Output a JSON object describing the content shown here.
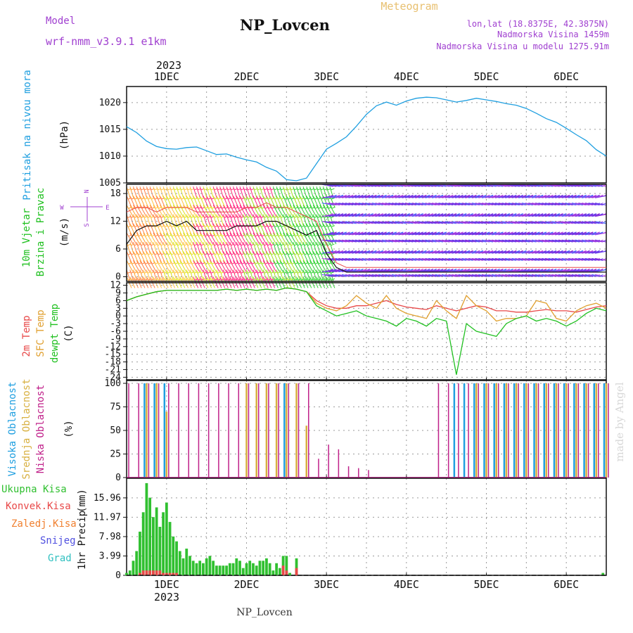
{
  "header": {
    "model_label": "Model",
    "model_name": "wrf-nmm_v3.9.1 e1km",
    "station": "NP_Lovcen",
    "meteogram_label": "Meteogram",
    "lonlat": "lon,lat (18.8375E, 42.3875N)",
    "elevation": "Nadmorska Visina 1459m",
    "model_elevation": "Nadmorska Visina u modelu 1275.91m",
    "watermark": "made by Angel",
    "footer_station": "NP_Lovcen"
  },
  "colors": {
    "pressure": "#1f9fe0",
    "wind_label": "#20c020",
    "temp2m": "#e84848",
    "sfc_temp": "#e0a030",
    "dewpt": "#20c020",
    "high_cloud": "#1f9fe0",
    "mid_cloud": "#d8b040",
    "low_cloud": "#c0208a",
    "precip_total": "#30c030",
    "precip_conv": "#e84848",
    "precip_frz": "#f08030",
    "snow": "#5050e0",
    "hail": "#30c0c0",
    "purple_text": "#a040d0",
    "gold_text": "#e8c070"
  },
  "chart_data": {
    "type": "meteogram",
    "time_axis": {
      "year": "2023",
      "day_labels": [
        "1DEC",
        "2DEC",
        "3DEC",
        "4DEC",
        "5DEC",
        "6DEC"
      ],
      "hour_range": [
        -12,
        132
      ]
    },
    "panels": [
      {
        "id": "pressure",
        "type": "line",
        "ylabel": "Pritisak na nivou mora",
        "unit": "(hPa)",
        "ylim": [
          1005,
          1023
        ],
        "yticks": [
          "1005",
          "1010",
          "1015",
          "1020"
        ],
        "x": [
          -12,
          -9,
          -6,
          -3,
          0,
          3,
          6,
          9,
          12,
          15,
          18,
          21,
          24,
          27,
          30,
          33,
          36,
          39,
          42,
          45,
          48,
          51,
          54,
          57,
          60,
          63,
          66,
          69,
          72,
          75,
          78,
          81,
          84,
          87,
          90,
          93,
          96,
          99,
          102,
          105,
          108,
          111,
          114,
          117,
          120,
          123,
          126,
          129,
          132
        ],
        "values": [
          1015.5,
          1014.4,
          1012.8,
          1011.8,
          1011.4,
          1011.3,
          1011.6,
          1011.7,
          1011.0,
          1010.3,
          1010.4,
          1009.8,
          1009.3,
          1008.9,
          1007.9,
          1007.2,
          1005.6,
          1005.4,
          1005.9,
          1008.6,
          1011.3,
          1012.4,
          1013.6,
          1015.6,
          1017.8,
          1019.4,
          1020.1,
          1019.5,
          1020.3,
          1020.8,
          1021.0,
          1020.9,
          1020.5,
          1020.1,
          1020.4,
          1020.8,
          1020.5,
          1020.2,
          1019.8,
          1019.5,
          1018.9,
          1018.0,
          1017.0,
          1016.3,
          1015.2,
          1014.0,
          1012.9,
          1011.2,
          1010.0
        ]
      },
      {
        "id": "wind",
        "type": "barbs",
        "ylabel": "10m Vjetar",
        "ylabel2": "Brzina i Pravac",
        "unit": "(m/s)",
        "compass": [
          "N",
          "W",
          "E",
          "S"
        ],
        "ylim": [
          -1,
          20
        ],
        "yticks": [
          "0",
          "6",
          "12",
          "18"
        ],
        "x": [
          -12,
          -9,
          -6,
          -3,
          0,
          3,
          6,
          9,
          12,
          15,
          18,
          21,
          24,
          27,
          30,
          33,
          36,
          39,
          42,
          45,
          48,
          51,
          54,
          57,
          60,
          63,
          66,
          69,
          72,
          75,
          78,
          81,
          84,
          87,
          90,
          93,
          96,
          99,
          102,
          105,
          108,
          111,
          114,
          117,
          120,
          123,
          126,
          129,
          132
        ],
        "speed": [
          7,
          10,
          11,
          11,
          12,
          11,
          12,
          10,
          10,
          10,
          10,
          11,
          11,
          11,
          12,
          12,
          11,
          10,
          9,
          10,
          5,
          2,
          1,
          1,
          1,
          1,
          1,
          1,
          1,
          1,
          1,
          1,
          1,
          1,
          1,
          1,
          1,
          1,
          1,
          1,
          1,
          1,
          1,
          1,
          1,
          1,
          1,
          1,
          1
        ],
        "gust": [
          14,
          15,
          15,
          14,
          15,
          15,
          15,
          14,
          14,
          14,
          14,
          14,
          15,
          15,
          16,
          15,
          15,
          14,
          13,
          12,
          7,
          3,
          2,
          2,
          2,
          2,
          2,
          2,
          2,
          2,
          2,
          2,
          2,
          2,
          2,
          2,
          2,
          2,
          2,
          2,
          2,
          2,
          2,
          2,
          2,
          2,
          2,
          2,
          2
        ]
      },
      {
        "id": "temperature",
        "type": "line",
        "ylabel": "2m Temp",
        "ylabel2": "SFC Temp",
        "ylabel3": "dewpt Temp",
        "unit": "(C)",
        "ylim": [
          -25,
          13
        ],
        "yticks": [
          "12",
          "9",
          "6",
          "3",
          "0",
          "-3",
          "-6",
          "-9",
          "-12",
          "-15",
          "-18",
          "-21",
          "-24"
        ],
        "x": [
          -12,
          -9,
          -6,
          -3,
          0,
          3,
          6,
          9,
          12,
          15,
          18,
          21,
          24,
          27,
          30,
          33,
          36,
          39,
          42,
          45,
          48,
          51,
          54,
          57,
          60,
          63,
          66,
          69,
          72,
          75,
          78,
          81,
          84,
          87,
          90,
          93,
          96,
          99,
          102,
          105,
          108,
          111,
          114,
          117,
          120,
          123,
          126,
          129,
          132
        ],
        "series": [
          {
            "name": "2m Temp",
            "values": [
              6,
              7.5,
              8.5,
              9.5,
              10,
              10,
              10,
              10,
              10,
              10,
              10.5,
              10,
              10.5,
              10,
              10.5,
              10,
              11,
              10.5,
              9.5,
              6,
              4,
              3,
              3,
              4,
              4,
              5,
              6,
              4.5,
              3.5,
              3,
              2.5,
              4,
              3,
              2,
              3,
              4,
              3.5,
              2,
              2,
              1.5,
              1.5,
              2,
              2.5,
              2,
              2,
              1.5,
              2.5,
              3.5,
              4
            ]
          },
          {
            "name": "SFC Temp",
            "values": [
              6,
              7.5,
              8.5,
              9.5,
              10,
              10,
              10,
              10,
              10,
              10,
              10.5,
              10,
              10.5,
              10,
              10.5,
              10,
              11,
              10.5,
              9.5,
              5,
              3,
              2,
              4,
              8,
              5,
              3,
              8,
              3,
              1,
              0,
              -1,
              6,
              2,
              -1,
              8,
              4,
              2,
              -2,
              -1,
              -1,
              0,
              6,
              5,
              -1,
              -2,
              2,
              4,
              5,
              3
            ]
          },
          {
            "name": "dewpt Temp",
            "values": [
              6,
              7.5,
              8.5,
              9.5,
              10,
              10,
              10,
              10,
              10,
              10,
              10.5,
              10,
              10.5,
              10,
              10.5,
              10,
              11,
              10.5,
              9.5,
              4,
              2,
              0,
              1,
              2,
              0,
              -1,
              -2,
              -4,
              -1,
              -2,
              -4,
              -1,
              -2,
              -23,
              -3,
              -6,
              -7,
              -8,
              -3,
              -1,
              0,
              -2,
              -1,
              -2,
              -4,
              -2,
              1,
              3,
              2
            ]
          }
        ]
      },
      {
        "id": "clouds",
        "type": "bar",
        "ylabel": "Visoka Oblacnost",
        "ylabel2": "Srednja Oblacnost",
        "ylabel3": "Niska Oblacnost",
        "unit": "(%)",
        "ylim": [
          0,
          103
        ],
        "yticks": [
          "0",
          "25",
          "50",
          "75",
          "100"
        ],
        "x": [
          -12,
          -9,
          -6,
          -3,
          0,
          3,
          6,
          9,
          12,
          15,
          18,
          21,
          24,
          27,
          30,
          33,
          36,
          39,
          42,
          45,
          48,
          51,
          54,
          57,
          60,
          63,
          66,
          69,
          72,
          75,
          78,
          81,
          84,
          87,
          90,
          93,
          96,
          99,
          102,
          105,
          108,
          111,
          114,
          117,
          120,
          123,
          126,
          129,
          132
        ],
        "series": [
          {
            "name": "Visoka Oblacnost",
            "values": [
              0,
              0,
              100,
              100,
              100,
              0,
              0,
              0,
              0,
              0,
              0,
              0,
              0,
              0,
              0,
              0,
              100,
              0,
              0,
              0,
              0,
              0,
              0,
              0,
              0,
              0,
              0,
              0,
              0,
              0,
              0,
              0,
              0,
              100,
              100,
              100,
              100,
              100,
              100,
              100,
              100,
              100,
              100,
              100,
              100,
              100,
              100,
              100,
              100
            ]
          },
          {
            "name": "Srednja Oblacnost",
            "values": [
              0,
              0,
              100,
              100,
              70,
              0,
              0,
              0,
              0,
              0,
              0,
              0,
              100,
              100,
              100,
              100,
              100,
              100,
              55,
              0,
              0,
              0,
              0,
              0,
              0,
              0,
              0,
              0,
              0,
              0,
              0,
              0,
              0,
              0,
              0,
              100,
              100,
              100,
              100,
              100,
              100,
              100,
              100,
              100,
              100,
              100,
              100,
              100,
              100
            ]
          },
          {
            "name": "Niska Oblacnost",
            "values": [
              100,
              100,
              100,
              100,
              100,
              100,
              100,
              100,
              100,
              100,
              100,
              100,
              100,
              100,
              100,
              100,
              100,
              100,
              100,
              20,
              35,
              30,
              12,
              10,
              8,
              0,
              0,
              0,
              0,
              0,
              0,
              100,
              100,
              100,
              100,
              100,
              100,
              100,
              100,
              100,
              100,
              100,
              100,
              100,
              100,
              100,
              100,
              100,
              100
            ]
          }
        ]
      },
      {
        "id": "precip",
        "type": "bar",
        "ylabel": "1hr Precip",
        "unit": "(mm)",
        "ylim": [
          0,
          20
        ],
        "yticks": [
          "0",
          "3.99",
          "7.98",
          "11.97",
          "15.96"
        ],
        "legend": [
          "Ukupna Kisa",
          "Konvek.Kisa",
          "Zaledj.Kisa",
          "Snijeg",
          "Grad"
        ],
        "x": [
          -12,
          -11,
          -10,
          -9,
          -8,
          -7,
          -6,
          -5,
          -4,
          -3,
          -2,
          -1,
          0,
          1,
          2,
          3,
          4,
          5,
          6,
          7,
          8,
          9,
          10,
          11,
          12,
          13,
          14,
          15,
          16,
          17,
          18,
          19,
          20,
          21,
          22,
          23,
          24,
          25,
          26,
          27,
          28,
          29,
          30,
          31,
          32,
          33,
          34,
          35,
          36,
          37,
          38,
          39,
          40,
          41,
          42,
          43,
          44,
          45,
          46,
          47,
          48,
          49,
          50,
          51,
          52,
          53,
          54,
          55,
          56,
          57,
          58,
          59,
          60
        ],
        "series": [
          {
            "name": "Ukupna Kisa",
            "values": [
              0.5,
              1,
              3,
              5,
              9,
              13,
              19,
              16,
              12,
              14,
              10,
              13,
              15,
              11,
              8,
              7,
              5,
              3.5,
              5.5,
              4,
              3,
              2.5,
              3,
              2.5,
              3.5,
              4,
              3,
              2,
              2,
              2,
              2,
              2.5,
              2.5,
              3.5,
              3,
              1.5,
              2.5,
              3,
              2.5,
              2,
              3,
              3,
              3.5,
              2.5,
              1,
              2.5,
              1.5,
              4,
              4,
              0.5,
              0,
              3.5,
              0,
              0,
              0,
              0,
              0,
              0,
              0,
              0,
              0,
              0,
              0,
              0,
              0,
              0,
              0,
              0,
              0,
              0,
              0,
              0,
              0
            ]
          },
          {
            "name": "Konvek.Kisa",
            "values": [
              0,
              0,
              0,
              0,
              0.5,
              1,
              1,
              1,
              1,
              1,
              1,
              0.5,
              0.5,
              0.5,
              0.5,
              0.5,
              0,
              0,
              0,
              0,
              0,
              0,
              0,
              0,
              0,
              0,
              0,
              0,
              0,
              0,
              0,
              0,
              0,
              0,
              0,
              0,
              0,
              0,
              0,
              0,
              0,
              0,
              0,
              0,
              0,
              0,
              0,
              2,
              1,
              0,
              0,
              1.5,
              0,
              0,
              0,
              0,
              0,
              0,
              0,
              0,
              0,
              0,
              0,
              0,
              0,
              0,
              0,
              0,
              0,
              0,
              0,
              0,
              0
            ]
          }
        ],
        "tail": [
          {
            "x": 131,
            "value": 0.5
          }
        ]
      }
    ]
  }
}
